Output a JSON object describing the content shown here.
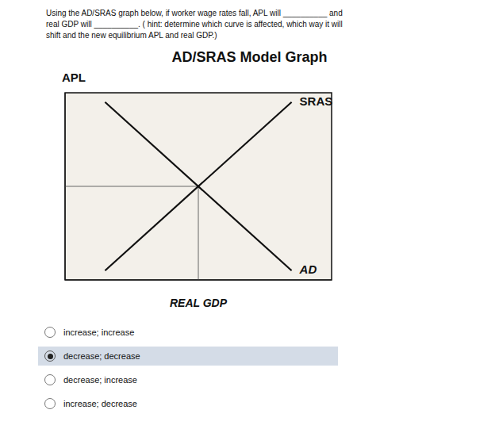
{
  "chart_data": {
    "type": "line",
    "title": "AD/SRAS Model Graph",
    "subtitle": [
      "Using the AD/SRAS graph below, if worker wage rates fall, APL will __________ and",
      "real GDP will __________. ( hint: determine which curve is affected, which way it will",
      "shift and the new equilibrium APL and real GDP.)"
    ],
    "x_label": "REAL GDP",
    "y_label": "APL",
    "xlim": [
      0,
      10
    ],
    "ylim": [
      0,
      10
    ],
    "tick_labels": false,
    "grid": false,
    "series": [
      {
        "name": "SRAS",
        "color": "#111111",
        "x": [
          1.5,
          8.5
        ],
        "values": [
          0.5,
          9.5
        ]
      },
      {
        "name": "AD",
        "color": "#111111",
        "x": [
          1.5,
          8.5
        ],
        "values": [
          9.5,
          0.5
        ]
      }
    ],
    "equilibrium": {
      "x": 5.0,
      "y": 5.0,
      "color": "#666666"
    },
    "choices": [
      "increase; increase",
      "decrease; decrease",
      "decrease; increase",
      "increase; decrease"
    ],
    "selected": 1
  }
}
